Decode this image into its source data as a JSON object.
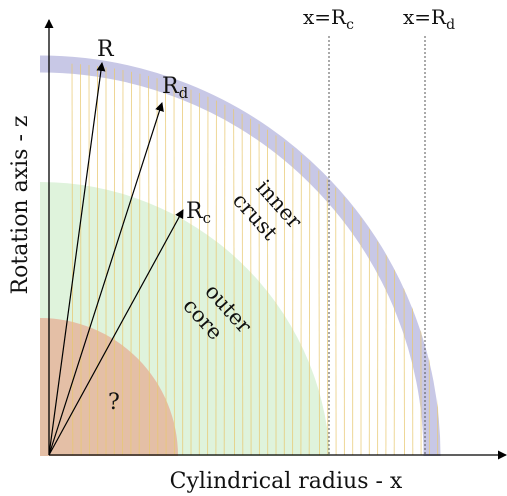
{
  "axes": {
    "x_label": "Cylindrical radius - x",
    "y_label": "Rotation axis - z"
  },
  "vertical_lines": {
    "rc": {
      "prefix": "x=R",
      "sub": "c"
    },
    "rd": {
      "prefix": "x=R",
      "sub": "d"
    }
  },
  "arrows": {
    "r": {
      "base": "R",
      "sub": ""
    },
    "rd": {
      "base": "R",
      "sub": "d"
    },
    "rc": {
      "base": "R",
      "sub": "c"
    }
  },
  "regions": {
    "inner_crust": [
      "inner",
      "crust"
    ],
    "outer_core": [
      "outer",
      "core"
    ],
    "inner_core": "?"
  },
  "colors": {
    "outer_shell": "#c8c8e6",
    "outer_core_fill": "#dff3dc",
    "inner_core_fill": "#e4bfa6",
    "field_lines": "#e8c870",
    "axes": "#000000",
    "dashed_lines": "#555555"
  }
}
